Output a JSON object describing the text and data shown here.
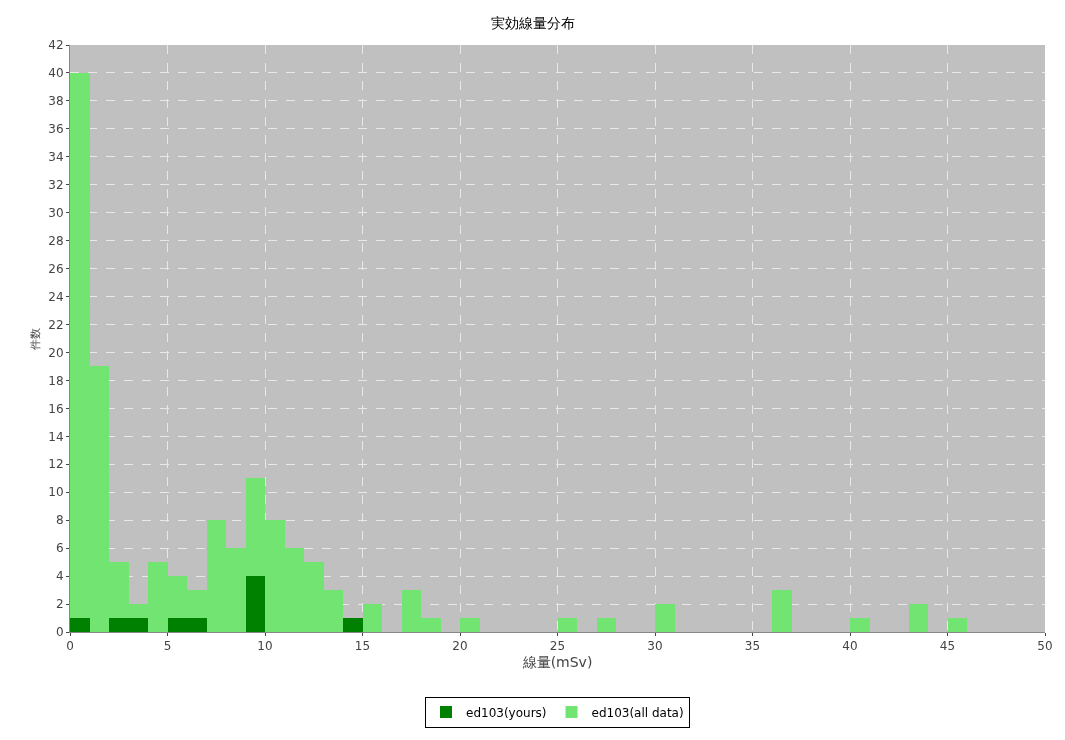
{
  "chart_data": {
    "type": "histogram",
    "title": "実効線量分布",
    "xlabel": "線量(mSv)",
    "ylabel": "件数",
    "bins": [
      0,
      1,
      2,
      3,
      4,
      5,
      6,
      7,
      8,
      9,
      10,
      11,
      12,
      13,
      14,
      15,
      16,
      17,
      18,
      19,
      20,
      21,
      22,
      23,
      24,
      25,
      26,
      27,
      28,
      29,
      30,
      31,
      32,
      33,
      34,
      35,
      36,
      37,
      38,
      39,
      40,
      41,
      42,
      43,
      44,
      45,
      46,
      47,
      48,
      49,
      50
    ],
    "series": [
      {
        "name": "ed103(yours)",
        "color": "#008000",
        "values": [
          1,
          0,
          1,
          1,
          0,
          1,
          1,
          0,
          0,
          4,
          0,
          0,
          0,
          0,
          1,
          0,
          0,
          0,
          0,
          0,
          0,
          0,
          0,
          0,
          0,
          0,
          0,
          0,
          0,
          0,
          0,
          0,
          0,
          0,
          0,
          0,
          0,
          0,
          0,
          0,
          0,
          0,
          0,
          0,
          0,
          0,
          0,
          0,
          0,
          0
        ]
      },
      {
        "name": "ed103(all data)",
        "color": "#72e472",
        "values": [
          40,
          19,
          5,
          2,
          5,
          4,
          3,
          8,
          6,
          11,
          8,
          6,
          5,
          3,
          null,
          2,
          0,
          3,
          1,
          0,
          1,
          0,
          0,
          0,
          0,
          1,
          0,
          1,
          0,
          0,
          2,
          0,
          0,
          0,
          0,
          0,
          3,
          0,
          0,
          0,
          1,
          0,
          0,
          2,
          0,
          1,
          0,
          0,
          0,
          0
        ]
      }
    ],
    "xlim": [
      0,
      50
    ],
    "xticks": [
      0,
      5,
      10,
      15,
      20,
      25,
      30,
      35,
      40,
      45,
      50
    ],
    "ylim": [
      0,
      42
    ],
    "yticks": [
      0,
      2,
      4,
      6,
      8,
      10,
      12,
      14,
      16,
      18,
      20,
      22,
      24,
      26,
      28,
      30,
      32,
      34,
      36,
      38,
      40,
      42
    ],
    "grid": true,
    "legend": "bottom"
  }
}
